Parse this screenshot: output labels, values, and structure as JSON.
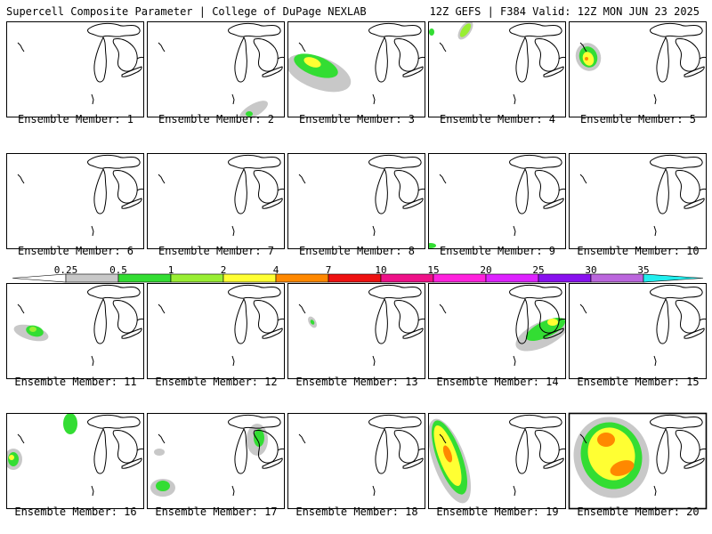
{
  "header": {
    "title_left": "Supercell Composite Parameter | College of DuPage NEXLAB",
    "title_right": "12Z GEFS | F384 Valid: 12Z MON JUN 23 2025"
  },
  "colorbar": {
    "colors": [
      "#c8c8c8",
      "#33dd33",
      "#99ee33",
      "#ffff33",
      "#ff8800",
      "#ee1111",
      "#ee1188",
      "#ff22dd",
      "#dd22ff",
      "#8811ee",
      "#bb66dd",
      "#22eeee"
    ],
    "ticks": [
      "0.25",
      "0.5",
      "1",
      "2",
      "4",
      "7",
      "10",
      "15",
      "20",
      "25",
      "30",
      "35"
    ]
  },
  "members": [
    {
      "label": "Ensemble Member: 1",
      "level": "none"
    },
    {
      "label": "Ensemble Member: 2",
      "level": "trace"
    },
    {
      "label": "Ensemble Member: 3",
      "level": "moderate"
    },
    {
      "label": "Ensemble Member: 4",
      "level": "low"
    },
    {
      "label": "Ensemble Member: 5",
      "level": "moderate"
    },
    {
      "label": "Ensemble Member: 6",
      "level": "none"
    },
    {
      "label": "Ensemble Member: 7",
      "level": "none"
    },
    {
      "label": "Ensemble Member: 8",
      "level": "none"
    },
    {
      "label": "Ensemble Member: 9",
      "level": "trace"
    },
    {
      "label": "Ensemble Member: 10",
      "level": "none"
    },
    {
      "label": "Ensemble Member: 11",
      "level": "low"
    },
    {
      "label": "Ensemble Member: 12",
      "level": "none"
    },
    {
      "label": "Ensemble Member: 13",
      "level": "trace"
    },
    {
      "label": "Ensemble Member: 14",
      "level": "low"
    },
    {
      "label": "Ensemble Member: 15",
      "level": "none"
    },
    {
      "label": "Ensemble Member: 16",
      "level": "low"
    },
    {
      "label": "Ensemble Member: 17",
      "level": "low"
    },
    {
      "label": "Ensemble Member: 18",
      "level": "none"
    },
    {
      "label": "Ensemble Member: 19",
      "level": "high"
    },
    {
      "label": "Ensemble Member: 20",
      "level": "high"
    }
  ]
}
